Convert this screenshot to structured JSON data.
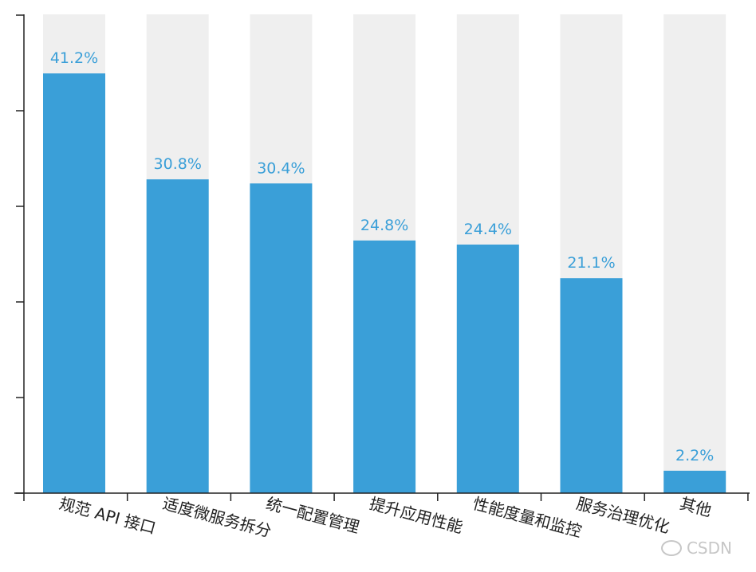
{
  "chart_data": {
    "type": "bar",
    "categories": [
      "规范 API 接口",
      "适度微服务拆分",
      "统一配置管理",
      "提升应用性能",
      "性能度量和监控",
      "服务治理优化",
      "其他"
    ],
    "values": [
      41.2,
      30.8,
      30.4,
      24.8,
      24.4,
      21.1,
      2.2
    ],
    "value_labels": [
      "41.2%",
      "30.8%",
      "30.4%",
      "24.8%",
      "24.4%",
      "21.1%",
      "2.2%"
    ],
    "ylim": [
      0,
      47
    ],
    "colors": {
      "bar": "#3a9fd8",
      "background_bar": "#efefef"
    }
  },
  "watermark": "CSDN"
}
